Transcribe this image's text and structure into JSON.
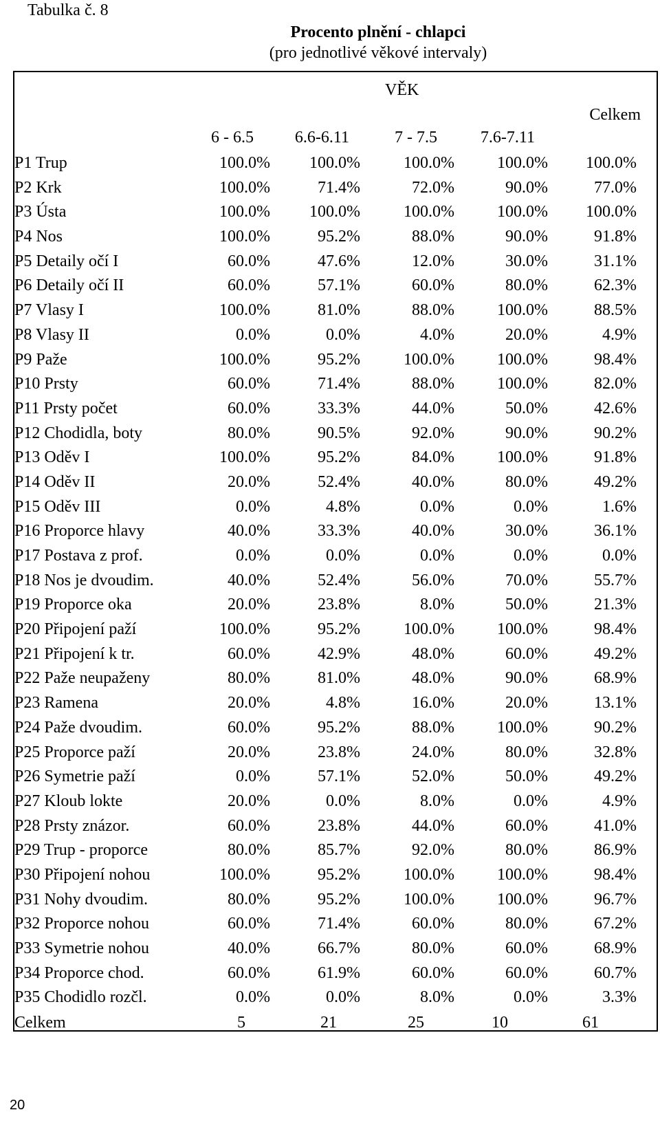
{
  "table_number": "Tabulka č. 8",
  "title": "Procento plnění - chlapci",
  "subtitle": "(pro jednotlivé věkové intervaly)",
  "age_header": "VĚK",
  "total_header": "Celkem",
  "columns": [
    "6 - 6.5",
    "6.6-6.11",
    "7 - 7.5",
    "7.6-7.11"
  ],
  "rows": [
    {
      "label": "P1 Trup",
      "values": [
        "100.0%",
        "100.0%",
        "100.0%",
        "100.0%",
        "100.0%"
      ]
    },
    {
      "label": "P2 Krk",
      "values": [
        "100.0%",
        "71.4%",
        "72.0%",
        "90.0%",
        "77.0%"
      ]
    },
    {
      "label": "P3 Ústa",
      "values": [
        "100.0%",
        "100.0%",
        "100.0%",
        "100.0%",
        "100.0%"
      ]
    },
    {
      "label": "P4 Nos",
      "values": [
        "100.0%",
        "95.2%",
        "88.0%",
        "90.0%",
        "91.8%"
      ]
    },
    {
      "label": "P5 Detaily očí I",
      "values": [
        "60.0%",
        "47.6%",
        "12.0%",
        "30.0%",
        "31.1%"
      ]
    },
    {
      "label": "P6 Detaily očí II",
      "values": [
        "60.0%",
        "57.1%",
        "60.0%",
        "80.0%",
        "62.3%"
      ]
    },
    {
      "label": "P7 Vlasy I",
      "values": [
        "100.0%",
        "81.0%",
        "88.0%",
        "100.0%",
        "88.5%"
      ]
    },
    {
      "label": "P8 Vlasy II",
      "values": [
        "0.0%",
        "0.0%",
        "4.0%",
        "20.0%",
        "4.9%"
      ]
    },
    {
      "label": "P9 Paže",
      "values": [
        "100.0%",
        "95.2%",
        "100.0%",
        "100.0%",
        "98.4%"
      ]
    },
    {
      "label": "P10 Prsty",
      "values": [
        "60.0%",
        "71.4%",
        "88.0%",
        "100.0%",
        "82.0%"
      ]
    },
    {
      "label": "P11 Prsty počet",
      "values": [
        "60.0%",
        "33.3%",
        "44.0%",
        "50.0%",
        "42.6%"
      ]
    },
    {
      "label": "P12 Chodidla, boty",
      "values": [
        "80.0%",
        "90.5%",
        "92.0%",
        "90.0%",
        "90.2%"
      ]
    },
    {
      "label": "P13 Oděv I",
      "values": [
        "100.0%",
        "95.2%",
        "84.0%",
        "100.0%",
        "91.8%"
      ]
    },
    {
      "label": "P14 Oděv II",
      "values": [
        "20.0%",
        "52.4%",
        "40.0%",
        "80.0%",
        "49.2%"
      ]
    },
    {
      "label": "P15 Oděv III",
      "values": [
        "0.0%",
        "4.8%",
        "0.0%",
        "0.0%",
        "1.6%"
      ]
    },
    {
      "label": "P16 Proporce hlavy",
      "values": [
        "40.0%",
        "33.3%",
        "40.0%",
        "30.0%",
        "36.1%"
      ]
    },
    {
      "label": "P17 Postava z prof.",
      "values": [
        "0.0%",
        "0.0%",
        "0.0%",
        "0.0%",
        "0.0%"
      ]
    },
    {
      "label": "P18 Nos je dvoudim.",
      "values": [
        "40.0%",
        "52.4%",
        "56.0%",
        "70.0%",
        "55.7%"
      ]
    },
    {
      "label": "P19 Proporce oka",
      "values": [
        "20.0%",
        "23.8%",
        "8.0%",
        "50.0%",
        "21.3%"
      ]
    },
    {
      "label": "P20 Připojení paží",
      "values": [
        "100.0%",
        "95.2%",
        "100.0%",
        "100.0%",
        "98.4%"
      ]
    },
    {
      "label": "P21 Připojení k tr.",
      "values": [
        "60.0%",
        "42.9%",
        "48.0%",
        "60.0%",
        "49.2%"
      ]
    },
    {
      "label": "P22 Paže neupaženy",
      "values": [
        "80.0%",
        "81.0%",
        "48.0%",
        "90.0%",
        "68.9%"
      ]
    },
    {
      "label": "P23 Ramena",
      "values": [
        "20.0%",
        "4.8%",
        "16.0%",
        "20.0%",
        "13.1%"
      ]
    },
    {
      "label": "P24 Paže dvoudim.",
      "values": [
        "60.0%",
        "95.2%",
        "88.0%",
        "100.0%",
        "90.2%"
      ]
    },
    {
      "label": "P25 Proporce paží",
      "values": [
        "20.0%",
        "23.8%",
        "24.0%",
        "80.0%",
        "32.8%"
      ]
    },
    {
      "label": "P26 Symetrie paží",
      "values": [
        "0.0%",
        "57.1%",
        "52.0%",
        "50.0%",
        "49.2%"
      ]
    },
    {
      "label": "P27 Kloub lokte",
      "values": [
        "20.0%",
        "0.0%",
        "8.0%",
        "0.0%",
        "4.9%"
      ]
    },
    {
      "label": "P28 Prsty znázor.",
      "values": [
        "60.0%",
        "23.8%",
        "44.0%",
        "60.0%",
        "41.0%"
      ]
    },
    {
      "label": "P29 Trup - proporce",
      "values": [
        "80.0%",
        "85.7%",
        "92.0%",
        "80.0%",
        "86.9%"
      ]
    },
    {
      "label": "P30 Připojení nohou",
      "values": [
        "100.0%",
        "95.2%",
        "100.0%",
        "100.0%",
        "98.4%"
      ]
    },
    {
      "label": "P31 Nohy dvoudim.",
      "values": [
        "80.0%",
        "95.2%",
        "100.0%",
        "100.0%",
        "96.7%"
      ]
    },
    {
      "label": "P32 Proporce nohou",
      "values": [
        "60.0%",
        "71.4%",
        "60.0%",
        "80.0%",
        "67.2%"
      ]
    },
    {
      "label": "P33 Symetrie nohou",
      "values": [
        "40.0%",
        "66.7%",
        "80.0%",
        "60.0%",
        "68.9%"
      ]
    },
    {
      "label": "P34 Proporce chod.",
      "values": [
        "60.0%",
        "61.9%",
        "60.0%",
        "60.0%",
        "60.7%"
      ]
    },
    {
      "label": "P35 Chodidlo rozčl.",
      "values": [
        "0.0%",
        "0.0%",
        "8.0%",
        "0.0%",
        "3.3%"
      ]
    }
  ],
  "totals": {
    "label": "Celkem",
    "values": [
      "5",
      "21",
      "25",
      "10",
      "61"
    ]
  },
  "page_number": "20"
}
